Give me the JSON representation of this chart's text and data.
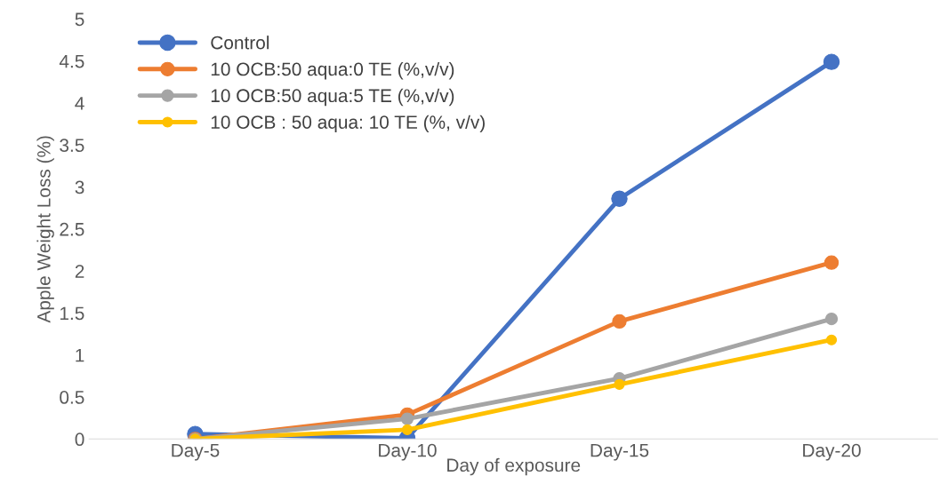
{
  "chart_data": {
    "type": "line",
    "xlabel": "Day of exposure",
    "ylabel": "Apple Weight Loss (%)",
    "categories": [
      "Day-5",
      "Day-10",
      "Day-15",
      "Day-20"
    ],
    "series": [
      {
        "name": "Control",
        "color": "#4472c4",
        "values": [
          0.06,
          0.01,
          2.86,
          4.49
        ]
      },
      {
        "name": "10 OCB:50 aqua:0 TE (%,v/v)",
        "color": "#ed7d31",
        "values": [
          0,
          0.29,
          1.4,
          2.1
        ]
      },
      {
        "name": "10 OCB:50 aqua:5 TE (%,v/v)",
        "color": "#a5a5a5",
        "values": [
          0,
          0.24,
          0.72,
          1.43
        ]
      },
      {
        "name": "10 OCB : 50 aqua: 10 TE (%, v/v)",
        "color": "#ffc000",
        "values": [
          0,
          0.11,
          0.65,
          1.18
        ]
      }
    ],
    "ylim": [
      0,
      5
    ],
    "yticks": [
      0,
      0.5,
      1,
      1.5,
      2,
      2.5,
      3,
      3.5,
      4,
      4.5,
      5
    ],
    "grid": false,
    "legend": "top left",
    "marker": "circle",
    "line_style": "solid"
  }
}
